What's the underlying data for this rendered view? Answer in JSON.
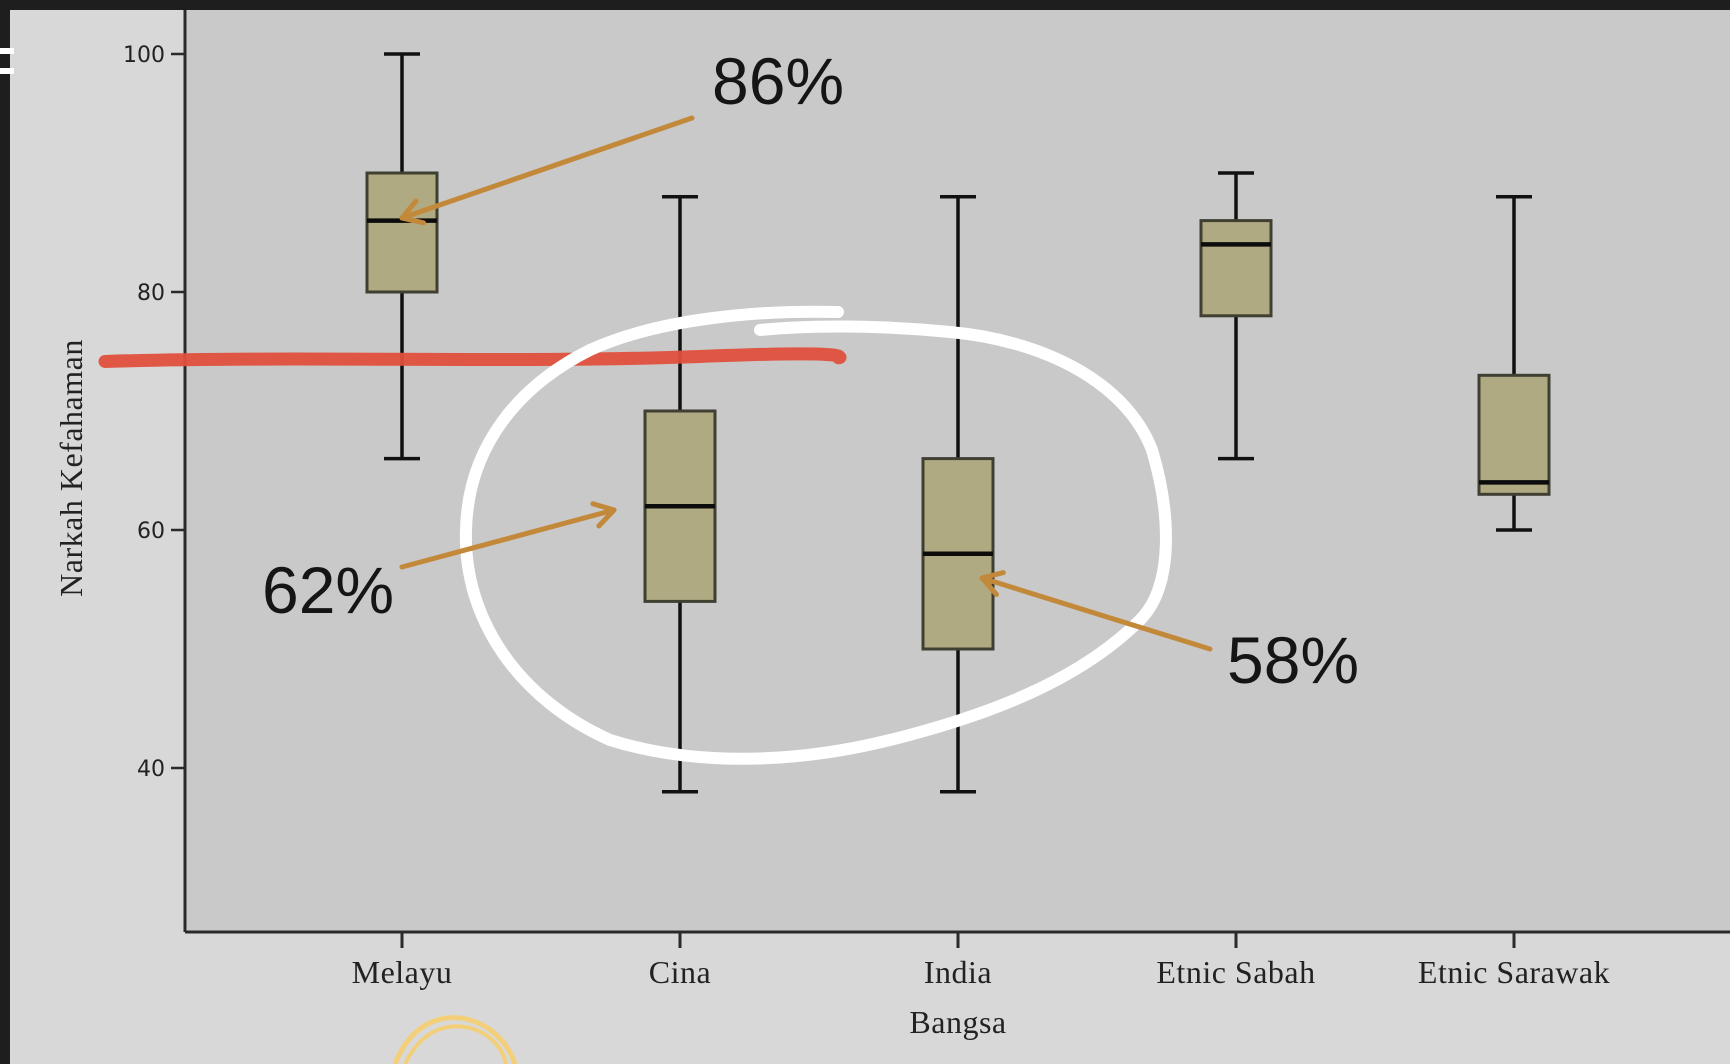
{
  "colors": {
    "outer_background": "#1e1e1e",
    "figure_background": "#d8d8d8",
    "plot_background": "#c9c9c9",
    "box_fill": "#b0aa82",
    "box_stroke": "#3f3f32",
    "whisker": "#111111",
    "median": "#0c0c0c",
    "annotation_arrow": "#c3893a",
    "highlight_line": "#e0503e",
    "highlight_circle": "#ffffff",
    "doodle": "#f3cf7a"
  },
  "chart_data": {
    "type": "box",
    "title": "",
    "xlabel": "Bangsa",
    "ylabel": "Narkah Kefahaman",
    "ylim": [
      26,
      110
    ],
    "yticks": [
      40,
      60,
      80,
      100
    ],
    "grid": false,
    "categories": [
      "Melayu",
      "Cina",
      "India",
      "Etnic Sabah",
      "Etnic Sarawak"
    ],
    "boxes": [
      {
        "category": "Melayu",
        "min": 66,
        "q1": 80,
        "median": 86,
        "q3": 90,
        "max": 100
      },
      {
        "category": "Cina",
        "min": 38,
        "q1": 54,
        "median": 62,
        "q3": 70,
        "max": 88
      },
      {
        "category": "India",
        "min": 38,
        "q1": 50,
        "median": 58,
        "q3": 66,
        "max": 88
      },
      {
        "category": "Etnic Sabah",
        "min": 66,
        "q1": 78,
        "median": 84,
        "q3": 86,
        "max": 90
      },
      {
        "category": "Etnic Sarawak",
        "min": 60,
        "q1": 63,
        "median": 64,
        "q3": 73,
        "max": 88
      }
    ],
    "annotations": [
      {
        "text": "86%",
        "points_to": "Melayu",
        "value": 86
      },
      {
        "text": "62%",
        "points_to": "Cina",
        "value": 62
      },
      {
        "text": "58%",
        "points_to": "India",
        "value": 58
      }
    ],
    "highlight_line_value": 74.5
  }
}
